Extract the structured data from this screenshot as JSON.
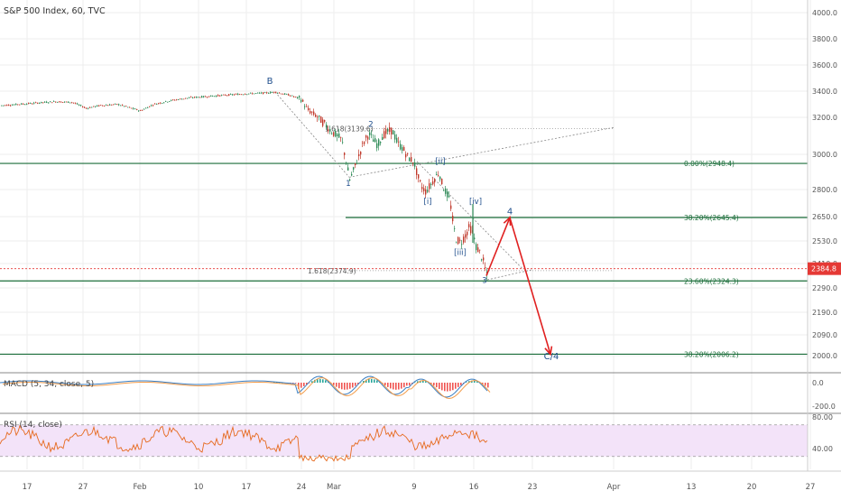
{
  "header": {
    "title": "S&P 500 Index, 60, TVC"
  },
  "chart_data": {
    "type": "line",
    "title": "S&P 500 Index, 60, TVC",
    "main": {
      "yticks": [
        4000.0,
        3800.0,
        3600.0,
        3400.0,
        3200.0,
        3000.0,
        2800.0,
        2650.0,
        2530.0,
        2410.0,
        2290.0,
        2190.0,
        2090.0,
        2000.0
      ],
      "ytick_labels": [
        "4000.0",
        "3800.0",
        "3600.0",
        "3400.0",
        "3200.0",
        "3000.0",
        "2800.0",
        "2650.0",
        "2530.0",
        "2410.0",
        "2290.0",
        "2190.0",
        "2090.0",
        "2000.0"
      ],
      "last_price": 2384.8,
      "last_price_label": "2384.8",
      "price_series": [
        [
          0,
          3290
        ],
        [
          20,
          3300
        ],
        [
          40,
          3310
        ],
        [
          60,
          3320
        ],
        [
          80,
          3315
        ],
        [
          95,
          3270
        ],
        [
          110,
          3290
        ],
        [
          130,
          3300
        ],
        [
          145,
          3270
        ],
        [
          155,
          3250
        ],
        [
          170,
          3300
        ],
        [
          190,
          3330
        ],
        [
          210,
          3350
        ],
        [
          230,
          3360
        ],
        [
          250,
          3370
        ],
        [
          270,
          3380
        ],
        [
          290,
          3385
        ],
        [
          305,
          3393
        ],
        [
          320,
          3370
        ],
        [
          333,
          3340
        ],
        [
          340,
          3260
        ],
        [
          350,
          3210
        ],
        [
          360,
          3160
        ],
        [
          370,
          3110
        ],
        [
          378,
          3080
        ],
        [
          383,
          2960
        ],
        [
          387,
          2855
        ],
        [
          392,
          2920
        ],
        [
          397,
          2990
        ],
        [
          402,
          3060
        ],
        [
          408,
          3110
        ],
        [
          413,
          3080
        ],
        [
          418,
          3050
        ],
        [
          423,
          3100
        ],
        [
          428,
          3120
        ],
        [
          434,
          3130
        ],
        [
          440,
          3060
        ],
        [
          446,
          3030
        ],
        [
          452,
          2980
        ],
        [
          458,
          2960
        ],
        [
          462,
          2880
        ],
        [
          466,
          2820
        ],
        [
          471,
          2790
        ],
        [
          477,
          2830
        ],
        [
          482,
          2870
        ],
        [
          486,
          2900
        ],
        [
          490,
          2820
        ],
        [
          494,
          2780
        ],
        [
          498,
          2740
        ],
        [
          502,
          2600
        ],
        [
          505,
          2540
        ],
        [
          510,
          2520
        ],
        [
          515,
          2560
        ],
        [
          520,
          2600
        ],
        [
          524,
          2560
        ],
        [
          527,
          2500
        ],
        [
          531,
          2470
        ],
        [
          535,
          2420
        ],
        [
          539,
          2350
        ]
      ],
      "wave_labels": [
        {
          "text": "B",
          "price": 3455
        },
        {
          "text": "1",
          "price": 2820
        },
        {
          "text": "2",
          "price": 3150
        },
        {
          "text": "[ii]",
          "price": 2945
        },
        {
          "text": "[i]",
          "price": 2720
        },
        {
          "text": "[iv]",
          "price": 2720
        },
        {
          "text": "[iii]",
          "price": 2455
        },
        {
          "text": "3",
          "price": 2315
        },
        {
          "text": "4",
          "price": 2662
        },
        {
          "text": "C/4",
          "price": 1984
        }
      ],
      "fib_levels": [
        {
          "label": "0.00%(2948.4)",
          "price": 2948.4
        },
        {
          "label": "38.20%(2645.4)",
          "price": 2645.4
        },
        {
          "label": "23.60%(2324.3)",
          "price": 2324.3
        },
        {
          "label": "38.20%(2006.2)",
          "price": 2006.2
        }
      ],
      "left_fib_labels": [
        {
          "label": "1.618(2374.9)",
          "price": 2374.9
        },
        {
          "label": "1.618(3139.6)",
          "price": 3139.6
        }
      ],
      "projection": [
        [
          539,
          2350
        ],
        [
          565,
          2645
        ],
        [
          610,
          2006
        ]
      ]
    },
    "macd": {
      "label": "MACD (5, 34, close, 5)",
      "yticks": [
        0.0,
        -200.0
      ],
      "ytick_labels": [
        "0.0",
        "-200.0"
      ]
    },
    "rsi": {
      "label": "RSI (14, close)",
      "yticks": [
        80.0,
        40.0
      ],
      "ytick_labels": [
        "80.00",
        "40.00"
      ],
      "band": [
        30,
        70
      ]
    },
    "x_tick_labels": [
      "17",
      "27",
      "Feb",
      "10",
      "17",
      "24",
      "Mar",
      "9",
      "16",
      "23",
      "Apr",
      "13",
      "20",
      "27"
    ]
  },
  "colors": {
    "fib": "#1b6e3a",
    "wave": "#1f4e8c",
    "projection": "#e02020",
    "price_line": "#e53935",
    "macd": "#f39c4a",
    "signal": "#3a7ec2",
    "rsi": "#e66a1f",
    "rsi_band": "#f3e3f9",
    "up": "#2e8b57",
    "down": "#c0392b"
  }
}
